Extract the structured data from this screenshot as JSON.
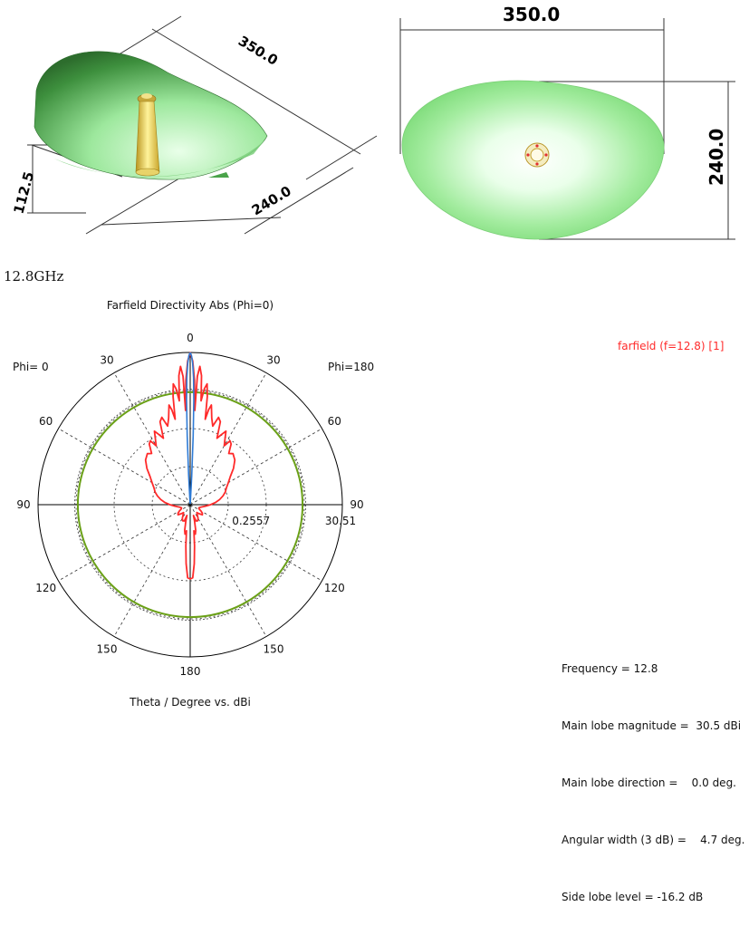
{
  "dimensions": {
    "iso_length": "350.0",
    "iso_width": "240.0",
    "iso_height": "112.5",
    "top_length": "350.0",
    "top_width": "240.0"
  },
  "frequency_label": "12.8GHz",
  "chart_data": {
    "type": "polar",
    "title": "Farfield Directivity Abs (Phi=0)",
    "xlabel": "Theta / Degree vs. dBi",
    "phi_left_label": "Phi=  0",
    "phi_right_label": "Phi=180",
    "legend": [
      {
        "name": "farfield (f=12.8) [1]",
        "color": "#ff2a2a"
      }
    ],
    "angle_ticks": [
      {
        "label": "0",
        "angle": 0
      },
      {
        "label": "30",
        "angle": -30
      },
      {
        "label": "30",
        "angle": 30
      },
      {
        "label": "60",
        "angle": -60
      },
      {
        "label": "60",
        "angle": 60
      },
      {
        "label": "90",
        "angle": -90
      },
      {
        "label": "90",
        "angle": 90
      },
      {
        "label": "120",
        "angle": -120
      },
      {
        "label": "120",
        "angle": 120
      },
      {
        "label": "150",
        "angle": -150
      },
      {
        "label": "150",
        "angle": 150
      },
      {
        "label": "180",
        "angle": 180
      }
    ],
    "radial_min_label": "0.2557",
    "radial_max_label": "30.51",
    "radial_range": [
      0.2557,
      30.51
    ],
    "grid": true,
    "series": [
      {
        "name": "farfield (f=12.8) [1]",
        "color": "#ff2a2a",
        "points": [
          [
            0,
            30.5
          ],
          [
            1,
            28.8
          ],
          [
            2,
            25.0
          ],
          [
            2.8,
            19.0
          ],
          [
            3.2,
            25.8
          ],
          [
            4,
            27.8
          ],
          [
            5,
            26.0
          ],
          [
            6,
            21.0
          ],
          [
            7,
            23.5
          ],
          [
            8,
            24.5
          ],
          [
            9,
            22.0
          ],
          [
            10,
            17.5
          ],
          [
            11,
            19.5
          ],
          [
            12,
            20.5
          ],
          [
            14,
            18.0
          ],
          [
            16,
            16.5
          ],
          [
            18,
            18.5
          ],
          [
            20,
            17.8
          ],
          [
            22,
            14.5
          ],
          [
            24,
            15.5
          ],
          [
            26,
            16.5
          ],
          [
            28,
            15.0
          ],
          [
            30,
            13.8
          ],
          [
            32,
            15.2
          ],
          [
            34,
            14.8
          ],
          [
            37,
            13.0
          ],
          [
            40,
            13.5
          ],
          [
            45,
            12.8
          ],
          [
            50,
            11.5
          ],
          [
            55,
            10.0
          ],
          [
            60,
            9.0
          ],
          [
            65,
            8.2
          ],
          [
            70,
            7.7
          ],
          [
            75,
            7.0
          ],
          [
            80,
            6.2
          ],
          [
            85,
            5.3
          ],
          [
            90,
            4.3
          ],
          [
            95,
            3.4
          ],
          [
            100,
            2.7
          ],
          [
            105,
            2.3
          ],
          [
            110,
            2.1
          ],
          [
            115,
            2.2
          ],
          [
            120,
            2.7
          ],
          [
            125,
            3.2
          ],
          [
            130,
            3.4
          ],
          [
            135,
            2.8
          ],
          [
            140,
            2.3
          ],
          [
            145,
            2.7
          ],
          [
            150,
            3.4
          ],
          [
            155,
            3.8
          ],
          [
            160,
            3.7
          ],
          [
            163,
            2.5
          ],
          [
            165,
            3.5
          ],
          [
            168,
            5.5
          ],
          [
            170,
            6.2
          ],
          [
            172,
            5.5
          ],
          [
            174,
            8.5
          ],
          [
            176,
            12.0
          ],
          [
            178,
            14.8
          ],
          [
            180,
            15.0
          ]
        ]
      },
      {
        "name": "main lobe",
        "color": "#2e7bd6",
        "points": [
          [
            0,
            30.51
          ],
          [
            0.5,
            29.9
          ],
          [
            1,
            28.4
          ],
          [
            1.5,
            25.5
          ],
          [
            2,
            21.0
          ],
          [
            2.5,
            14.0
          ],
          [
            3,
            6.0
          ],
          [
            3.5,
            0.5
          ]
        ]
      }
    ],
    "reference_circle": {
      "color": "#6aa017",
      "value": 22.6
    },
    "dashed_circle": {
      "value": 23.2
    }
  },
  "stats": [
    "Frequency = 12.8",
    "Main lobe magnitude =  30.5 dBi",
    "Main lobe direction =    0.0 deg.",
    "Angular width (3 dB) =    4.7 deg.",
    "Side lobe level = -16.2 dB"
  ]
}
